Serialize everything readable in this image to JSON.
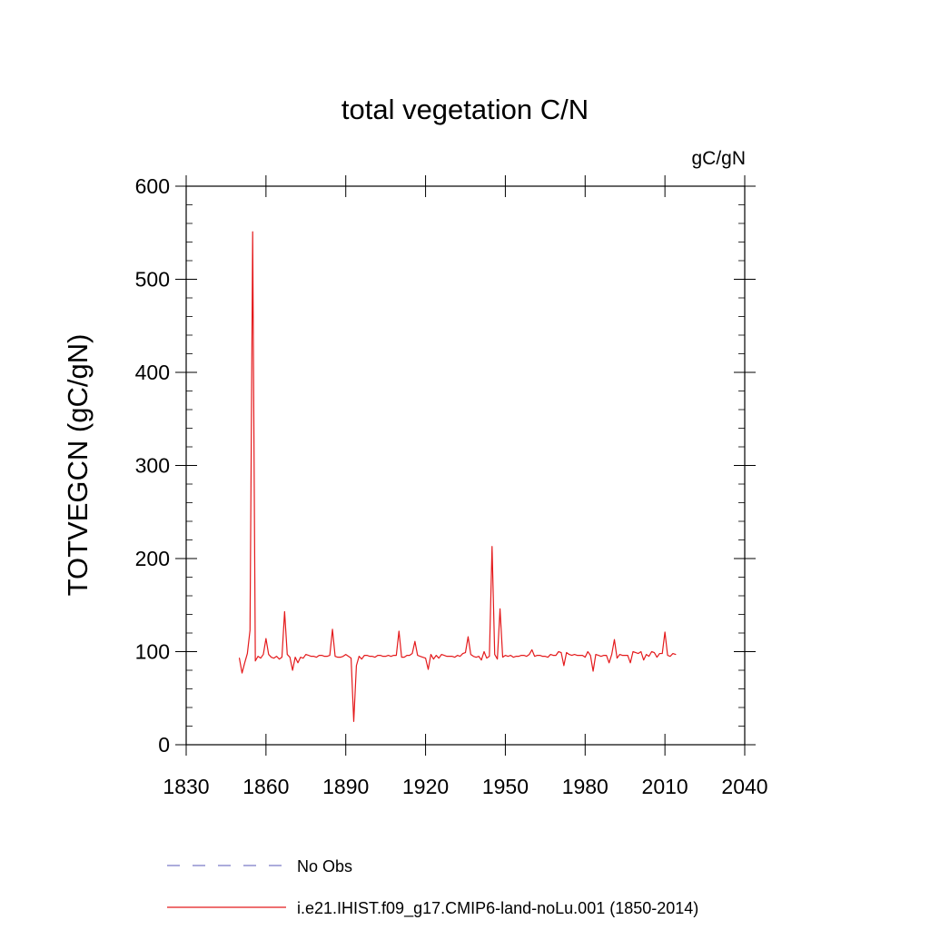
{
  "chart_data": {
    "type": "line",
    "title": "total vegetation C/N",
    "units_label": "gC/gN",
    "ylabel": "TOTVEGCN  (gC/gN)",
    "xlabel": "",
    "xlim": [
      1830,
      2040
    ],
    "ylim": [
      0,
      600
    ],
    "x_ticks": [
      1830,
      1860,
      1890,
      1920,
      1950,
      1980,
      2010,
      2040
    ],
    "y_ticks": [
      0,
      100,
      200,
      300,
      400,
      500,
      600
    ],
    "grid": false,
    "legend_position": "bottom-left",
    "legend": [
      {
        "label": "No Obs",
        "style": "dashed",
        "color": "#7b7bc8"
      },
      {
        "label": "i.e21.IHIST.f09_g17.CMIP6-land-noLu.001 (1850-2014)",
        "style": "solid",
        "color": "#e41a1c"
      }
    ],
    "series": [
      {
        "name": "i.e21.IHIST.f09_g17.CMIP6-land-noLu.001 (1850-2014)",
        "color": "#e41a1c",
        "x": [
          1850,
          1851,
          1852,
          1853,
          1854,
          1855,
          1856,
          1857,
          1858,
          1859,
          1860,
          1861,
          1862,
          1863,
          1864,
          1865,
          1866,
          1867,
          1868,
          1869,
          1870,
          1871,
          1872,
          1873,
          1874,
          1875,
          1876,
          1877,
          1878,
          1879,
          1880,
          1881,
          1882,
          1883,
          1884,
          1885,
          1886,
          1887,
          1888,
          1889,
          1890,
          1891,
          1892,
          1893,
          1894,
          1895,
          1896,
          1897,
          1898,
          1899,
          1900,
          1901,
          1902,
          1903,
          1904,
          1905,
          1906,
          1907,
          1908,
          1909,
          1910,
          1911,
          1912,
          1913,
          1914,
          1915,
          1916,
          1917,
          1918,
          1919,
          1920,
          1921,
          1922,
          1923,
          1924,
          1925,
          1926,
          1927,
          1928,
          1929,
          1930,
          1931,
          1932,
          1933,
          1934,
          1935,
          1936,
          1937,
          1938,
          1939,
          1940,
          1941,
          1942,
          1943,
          1944,
          1945,
          1946,
          1947,
          1948,
          1949,
          1950,
          1951,
          1952,
          1953,
          1954,
          1955,
          1956,
          1957,
          1958,
          1959,
          1960,
          1961,
          1962,
          1963,
          1964,
          1965,
          1966,
          1967,
          1968,
          1969,
          1970,
          1971,
          1972,
          1973,
          1974,
          1975,
          1976,
          1977,
          1978,
          1979,
          1980,
          1981,
          1982,
          1983,
          1984,
          1985,
          1986,
          1987,
          1988,
          1989,
          1990,
          1991,
          1992,
          1993,
          1994,
          1995,
          1996,
          1997,
          1998,
          1999,
          2000,
          2001,
          2002,
          2003,
          2004,
          2005,
          2006,
          2007,
          2008,
          2009,
          2010,
          2011,
          2012,
          2013,
          2014
        ],
        "y": [
          93,
          77,
          88,
          98,
          123,
          551,
          90,
          95,
          93,
          97,
          114,
          97,
          94,
          93,
          95,
          92,
          94,
          143,
          97,
          94,
          80,
          94,
          88,
          94,
          93,
          97,
          96,
          95,
          95,
          94,
          96,
          96,
          95,
          95,
          96,
          124,
          95,
          94,
          94,
          95,
          97,
          95,
          93,
          25,
          85,
          95,
          92,
          96,
          96,
          95,
          95,
          94,
          96,
          96,
          95,
          95,
          96,
          95,
          96,
          96,
          122,
          94,
          94,
          96,
          96,
          98,
          111,
          96,
          95,
          94,
          93,
          81,
          97,
          92,
          96,
          93,
          97,
          96,
          95,
          95,
          95,
          94,
          96,
          95,
          98,
          99,
          116,
          97,
          95,
          94,
          95,
          91,
          100,
          93,
          95,
          213,
          97,
          92,
          146,
          94,
          96,
          95,
          96,
          94,
          95,
          95,
          96,
          96,
          95,
          97,
          102,
          95,
          96,
          96,
          95,
          95,
          94,
          97,
          96,
          96,
          100,
          99,
          85,
          99,
          97,
          96,
          97,
          96,
          96,
          96,
          94,
          100,
          96,
          79,
          97,
          96,
          95,
          96,
          96,
          88,
          97,
          113,
          93,
          97,
          96,
          96,
          96,
          88,
          100,
          99,
          98,
          100,
          91,
          97,
          95,
          100,
          99,
          94,
          98,
          98,
          121,
          96,
          95,
          98,
          97
        ]
      }
    ]
  }
}
